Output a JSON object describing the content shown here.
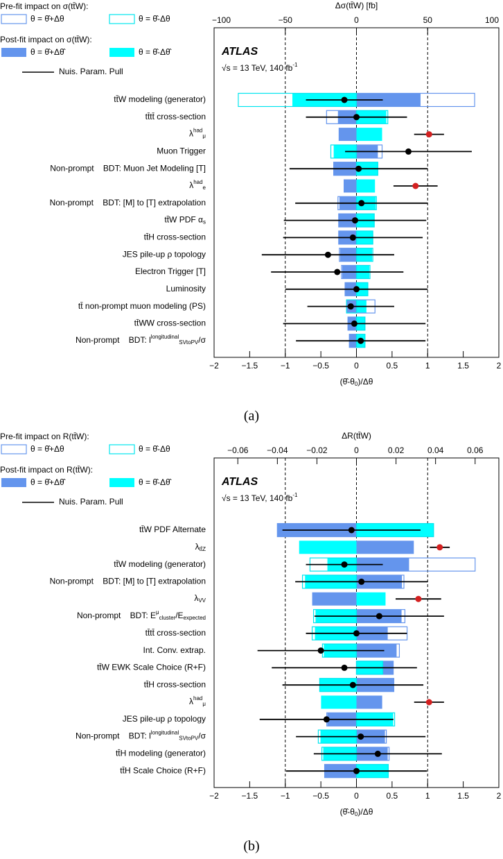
{
  "chart_data": [
    {
      "type": "ranking",
      "x2label": "Δσ(tt̄W) [fb]",
      "xlabel": {
        "text": "(θ̂-θ",
        "sub": "0",
        "after": ")/Δθ"
      },
      "experiment": "ATLAS",
      "energy_label": {
        "text": "√s = 13 TeV, 140 fb",
        "sup": "-1"
      },
      "caption": "(a)",
      "legend_titles": [
        "Pre-fit impact on σ(tt̄W):",
        "Post-fit impact on σ(tt̄W):"
      ],
      "categories": [
        "tt̄W modeling (generator)",
        "tt̄tt̄ cross-section",
        {
          "text": "λ",
          "sub": "μ",
          "sup": "had"
        },
        "Muon Trigger",
        "Non-prompt    BDT: Muon Jet Modeling [T]",
        {
          "text": "λ",
          "sub": "e",
          "sup": "had"
        },
        "Non-prompt    BDT: [M] to [T] extrapolation",
        {
          "text": "tt̄W PDF α",
          "sub": "s"
        },
        "tt̄H cross-section",
        "JES pile-up ρ topology",
        "Electron Trigger [T]",
        "Luminosity",
        "tt̄ non-prompt muon modeling (PS)",
        "tt̄WW cross-section",
        {
          "text": "Non-prompt    BDT: l",
          "sup": "longitudinal",
          "sub": "SVtoPV",
          "after": "/σ"
        }
      ],
      "series": [
        {
          "name": "θ = θ̂+Δθ",
          "style": "outline",
          "axis": "x2",
          "color": "#6495ed",
          "values": [
            83,
            -21,
            null,
            18,
            -16,
            null,
            -13,
            -12.5,
            -12.5,
            -12,
            -10.5,
            -8,
            13,
            -6,
            -5
          ]
        },
        {
          "name": "θ = θ̂-Δθ",
          "style": "outline",
          "axis": "x2",
          "color": "#00e5ee",
          "values": [
            -83,
            22,
            null,
            -18,
            15,
            null,
            14,
            12.5,
            11.5,
            11.5,
            9.5,
            8,
            -7,
            6,
            6
          ]
        },
        {
          "name": "θ = θ̂+Δθ̂",
          "style": "fill",
          "axis": "x2",
          "color": "#6495ed",
          "values": [
            45,
            -13,
            -12.5,
            15,
            -16,
            -9,
            -12,
            -12.5,
            -12.5,
            -11.5,
            -10,
            -8,
            -7,
            -6,
            -5
          ]
        },
        {
          "name": "θ = θ̂-Δθ̂",
          "style": "fill",
          "axis": "x2",
          "color": "#00ffff",
          "values": [
            -45,
            21,
            18,
            -16,
            15,
            13,
            13.5,
            12.5,
            11.5,
            11,
            9,
            8,
            7,
            6,
            6
          ]
        },
        {
          "name": "Nuis. Param. Pull",
          "style": "points",
          "color": "#000000",
          "values": [
            -0.17,
            0,
            1.02,
            0.73,
            0.03,
            0.83,
            0.07,
            -0.02,
            -0.05,
            -0.4,
            -0.27,
            0,
            -0.08,
            -0.03,
            0.06
          ],
          "errors": [
            0.54,
            0.71,
            0.21,
            0.89,
            0.97,
            0.31,
            0.93,
            1.0,
            0.98,
            0.93,
            0.93,
            1.0,
            0.61,
            1.0,
            0.91
          ],
          "point_colors": [
            "#000000",
            "#000000",
            "#d42020",
            "#000000",
            "#000000",
            "#d42020",
            "#000000",
            "#000000",
            "#000000",
            "#000000",
            "#000000",
            "#000000",
            "#000000",
            "#000000",
            "#000000"
          ]
        }
      ],
      "xlim": [
        -2,
        2
      ],
      "xticks": [
        {
          "value": -2,
          "label": "−2"
        },
        {
          "value": -1.5,
          "label": "−1.5"
        },
        {
          "value": -1,
          "label": "−1"
        },
        {
          "value": -0.5,
          "label": "−0.5"
        },
        0,
        0.5,
        1,
        1.5,
        2
      ],
      "x2lim": [
        -100,
        100
      ],
      "x2ticks": [
        {
          "value": -100,
          "label": "−100"
        },
        {
          "value": -50,
          "label": "−50"
        },
        0,
        50,
        100
      ],
      "reference_lines": [
        -1,
        0,
        1
      ]
    },
    {
      "type": "ranking",
      "x2label": "ΔR(tt̄W)",
      "xlabel": {
        "text": "(θ̂-θ",
        "sub": "0",
        "after": ")/Δθ"
      },
      "experiment": "ATLAS",
      "energy_label": {
        "text": "√s = 13 TeV, 140 fb",
        "sup": "-1"
      },
      "caption": "(b)",
      "legend_titles": [
        "Pre-fit impact on R(tt̄W):",
        "Post-fit impact on R(tt̄W):"
      ],
      "categories": [
        "tt̄W PDF Alternate",
        {
          "text": "λ",
          "sub": "tt̄Z"
        },
        "tt̄W modeling (generator)",
        "Non-prompt    BDT: [M] to [T] extrapolation",
        {
          "text": "λ",
          "sub": "VV"
        },
        {
          "text": "Non-prompt    BDT: E",
          "sup": "μ",
          "sub": "cluster",
          "after": "/E",
          "after_sub": "expected"
        },
        "tt̄tt̄ cross-section",
        "Int. Conv. extrap.",
        "tt̄W EWK Scale Choice (R+F)",
        "tt̄H cross-section",
        {
          "text": "λ",
          "sub": "μ",
          "sup": "had"
        },
        "JES pile-up ρ topology",
        {
          "text": "Non-prompt    BDT: l",
          "sup": "longitudinal",
          "sub": "SVtoPV",
          "after": "/σ"
        },
        "tt̄H modeling (generator)",
        "tt̄H Scale Choice (R+F)"
      ],
      "series": [
        {
          "name": "θ = θ̂+Δθ",
          "style": "outline",
          "axis": "x2",
          "color": "#6495ed",
          "values": [
            -0.04,
            null,
            0.06,
            0.024,
            null,
            0.0245,
            0.0256,
            0.0217,
            0.0186,
            0.0189,
            null,
            -0.015,
            0.0151,
            0.0165,
            -0.0161
          ]
        },
        {
          "name": "θ = θ̂-Δθ",
          "style": "outline",
          "axis": "x2",
          "color": "#00e5ee",
          "values": [
            0.039,
            null,
            -0.0235,
            -0.0273,
            null,
            -0.0217,
            -0.0224,
            -0.0172,
            0.0133,
            -0.0186,
            null,
            0.0193,
            -0.0193,
            -0.0175,
            0.0161
          ]
        },
        {
          "name": "θ = θ̂+Δθ̂",
          "style": "fill",
          "axis": "x2",
          "color": "#6495ed",
          "values": [
            -0.04,
            0.029,
            0.0266,
            0.023,
            -0.0224,
            0.0228,
            0.0158,
            0.0203,
            0.0186,
            0.0189,
            0.013,
            -0.0147,
            0.0144,
            0.0158,
            -0.0161
          ]
        },
        {
          "name": "θ = θ̂-Δθ̂",
          "style": "fill",
          "axis": "x2",
          "color": "#00ffff",
          "values": [
            0.039,
            -0.029,
            -0.0147,
            -0.026,
            0.0147,
            -0.0207,
            -0.021,
            -0.0165,
            0.0133,
            -0.0186,
            -0.0179,
            0.0186,
            -0.0182,
            -0.0168,
            0.0161
          ]
        },
        {
          "name": "Nuis. Param. Pull",
          "style": "points",
          "color": "#000000",
          "values": [
            -0.07,
            1.17,
            -0.17,
            0.07,
            0.87,
            0.32,
            0,
            -0.5,
            -0.17,
            -0.05,
            1.02,
            -0.42,
            0.06,
            0.3,
            0
          ],
          "errors": [
            0.97,
            0.14,
            0.54,
            0.93,
            0.32,
            0.91,
            0.71,
            0.89,
            1.02,
            0.99,
            0.21,
            0.94,
            0.91,
            0.9,
            0.99
          ],
          "point_colors": [
            "#000000",
            "#d42020",
            "#000000",
            "#000000",
            "#d42020",
            "#000000",
            "#000000",
            "#000000",
            "#000000",
            "#000000",
            "#d42020",
            "#000000",
            "#000000",
            "#000000",
            "#000000"
          ]
        }
      ],
      "xlim": [
        -2,
        2
      ],
      "xticks": [
        {
          "value": -2,
          "label": "−2"
        },
        {
          "value": -1.5,
          "label": "−1.5"
        },
        {
          "value": -1,
          "label": "−1"
        },
        {
          "value": -0.5,
          "label": "−0.5"
        },
        0,
        0.5,
        1,
        1.5,
        2
      ],
      "x2lim": [
        -0.072,
        0.072
      ],
      "x2ticks": [
        {
          "value": -0.06,
          "label": "−0.06"
        },
        {
          "value": -0.04,
          "label": "−0.04"
        },
        {
          "value": -0.02,
          "label": "−0.02"
        },
        0,
        0.02,
        0.04,
        0.06
      ],
      "reference_lines": [
        -1,
        0,
        1
      ]
    }
  ]
}
